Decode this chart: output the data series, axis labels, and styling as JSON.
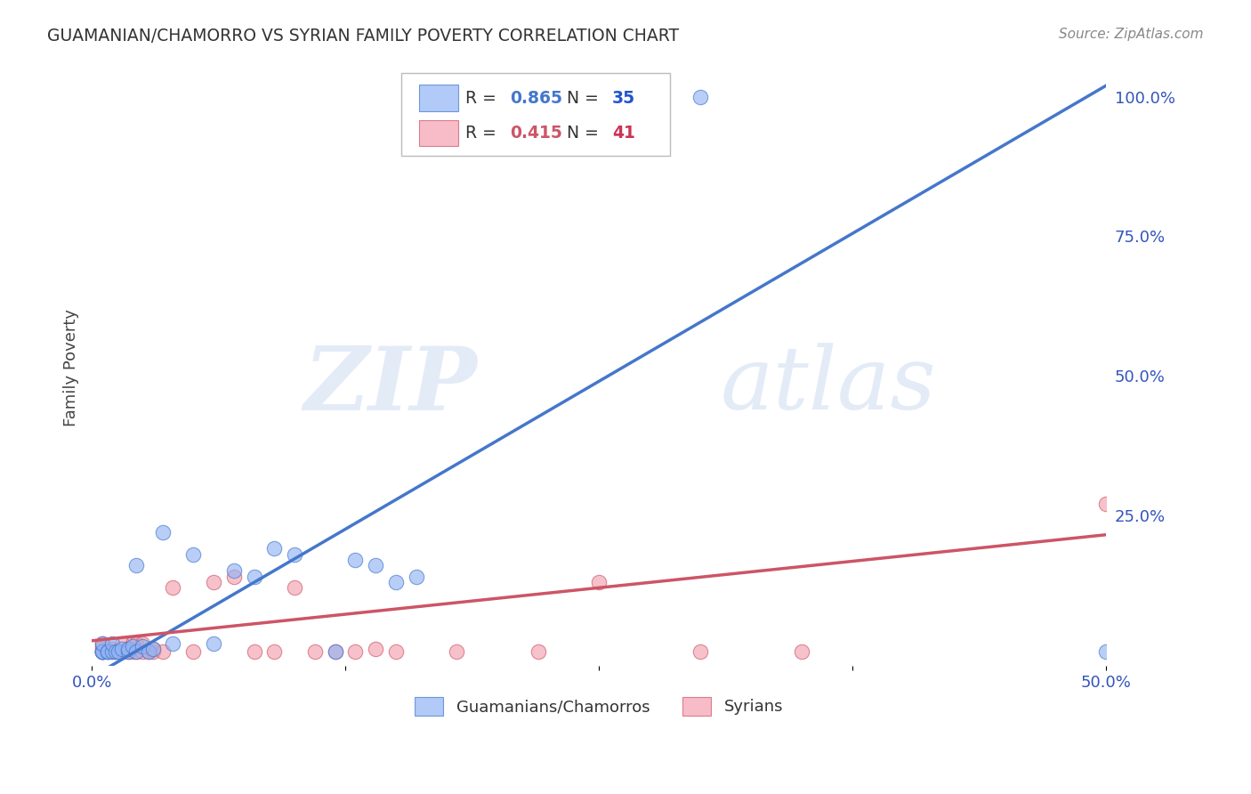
{
  "title": "GUAMANIAN/CHAMORRO VS SYRIAN FAMILY POVERTY CORRELATION CHART",
  "source": "Source: ZipAtlas.com",
  "ylabel": "Family Poverty",
  "xlim": [
    0.0,
    0.5
  ],
  "ylim": [
    -0.02,
    1.05
  ],
  "xtick_pos": [
    0.0,
    0.125,
    0.25,
    0.375,
    0.5
  ],
  "xtick_labels": [
    "0.0%",
    "",
    "",
    "",
    "50.0%"
  ],
  "ytick_labels_right": [
    "100.0%",
    "75.0%",
    "50.0%",
    "25.0%"
  ],
  "ytick_positions_right": [
    1.0,
    0.75,
    0.5,
    0.25
  ],
  "grid_color": "#cccccc",
  "background_color": "#ffffff",
  "watermark_zip": "ZIP",
  "watermark_atlas": "atlas",
  "blue_color": "#92b4f4",
  "pink_color": "#f4a0b0",
  "blue_line_color": "#4477cc",
  "pink_line_color": "#cc5566",
  "legend_blue_R": "0.865",
  "legend_blue_N": "35",
  "legend_pink_R": "0.415",
  "legend_pink_N": "41",
  "legend_blue_label": "Guamanians/Chamorros",
  "legend_pink_label": "Syrians",
  "blue_scatter_x": [
    0.005,
    0.005,
    0.005,
    0.005,
    0.005,
    0.008,
    0.008,
    0.01,
    0.01,
    0.012,
    0.013,
    0.015,
    0.018,
    0.018,
    0.02,
    0.022,
    0.022,
    0.025,
    0.028,
    0.03,
    0.035,
    0.04,
    0.05,
    0.06,
    0.07,
    0.08,
    0.09,
    0.1,
    0.12,
    0.13,
    0.14,
    0.15,
    0.16,
    0.3,
    0.5
  ],
  "blue_scatter_y": [
    0.005,
    0.005,
    0.005,
    0.005,
    0.02,
    0.005,
    0.005,
    0.005,
    0.02,
    0.005,
    0.005,
    0.01,
    0.005,
    0.01,
    0.015,
    0.005,
    0.16,
    0.015,
    0.005,
    0.01,
    0.22,
    0.02,
    0.18,
    0.02,
    0.15,
    0.14,
    0.19,
    0.18,
    0.005,
    0.17,
    0.16,
    0.13,
    0.14,
    1.0,
    0.005
  ],
  "pink_scatter_x": [
    0.005,
    0.005,
    0.005,
    0.005,
    0.005,
    0.008,
    0.01,
    0.01,
    0.012,
    0.015,
    0.015,
    0.018,
    0.018,
    0.02,
    0.02,
    0.022,
    0.022,
    0.025,
    0.025,
    0.028,
    0.03,
    0.03,
    0.035,
    0.04,
    0.05,
    0.06,
    0.07,
    0.08,
    0.09,
    0.1,
    0.11,
    0.12,
    0.13,
    0.14,
    0.15,
    0.18,
    0.22,
    0.25,
    0.3,
    0.35,
    0.5
  ],
  "pink_scatter_y": [
    0.005,
    0.005,
    0.01,
    0.015,
    0.02,
    0.005,
    0.005,
    0.01,
    0.005,
    0.005,
    0.02,
    0.005,
    0.01,
    0.005,
    0.02,
    0.005,
    0.02,
    0.005,
    0.02,
    0.005,
    0.005,
    0.01,
    0.005,
    0.12,
    0.005,
    0.13,
    0.14,
    0.005,
    0.005,
    0.12,
    0.005,
    0.005,
    0.005,
    0.01,
    0.005,
    0.005,
    0.005,
    0.13,
    0.005,
    0.005,
    0.27
  ],
  "blue_line_x": [
    0.0,
    0.5
  ],
  "blue_line_y": [
    -0.04,
    1.02
  ],
  "pink_line_x": [
    0.0,
    0.5
  ],
  "pink_line_y": [
    0.025,
    0.215
  ]
}
